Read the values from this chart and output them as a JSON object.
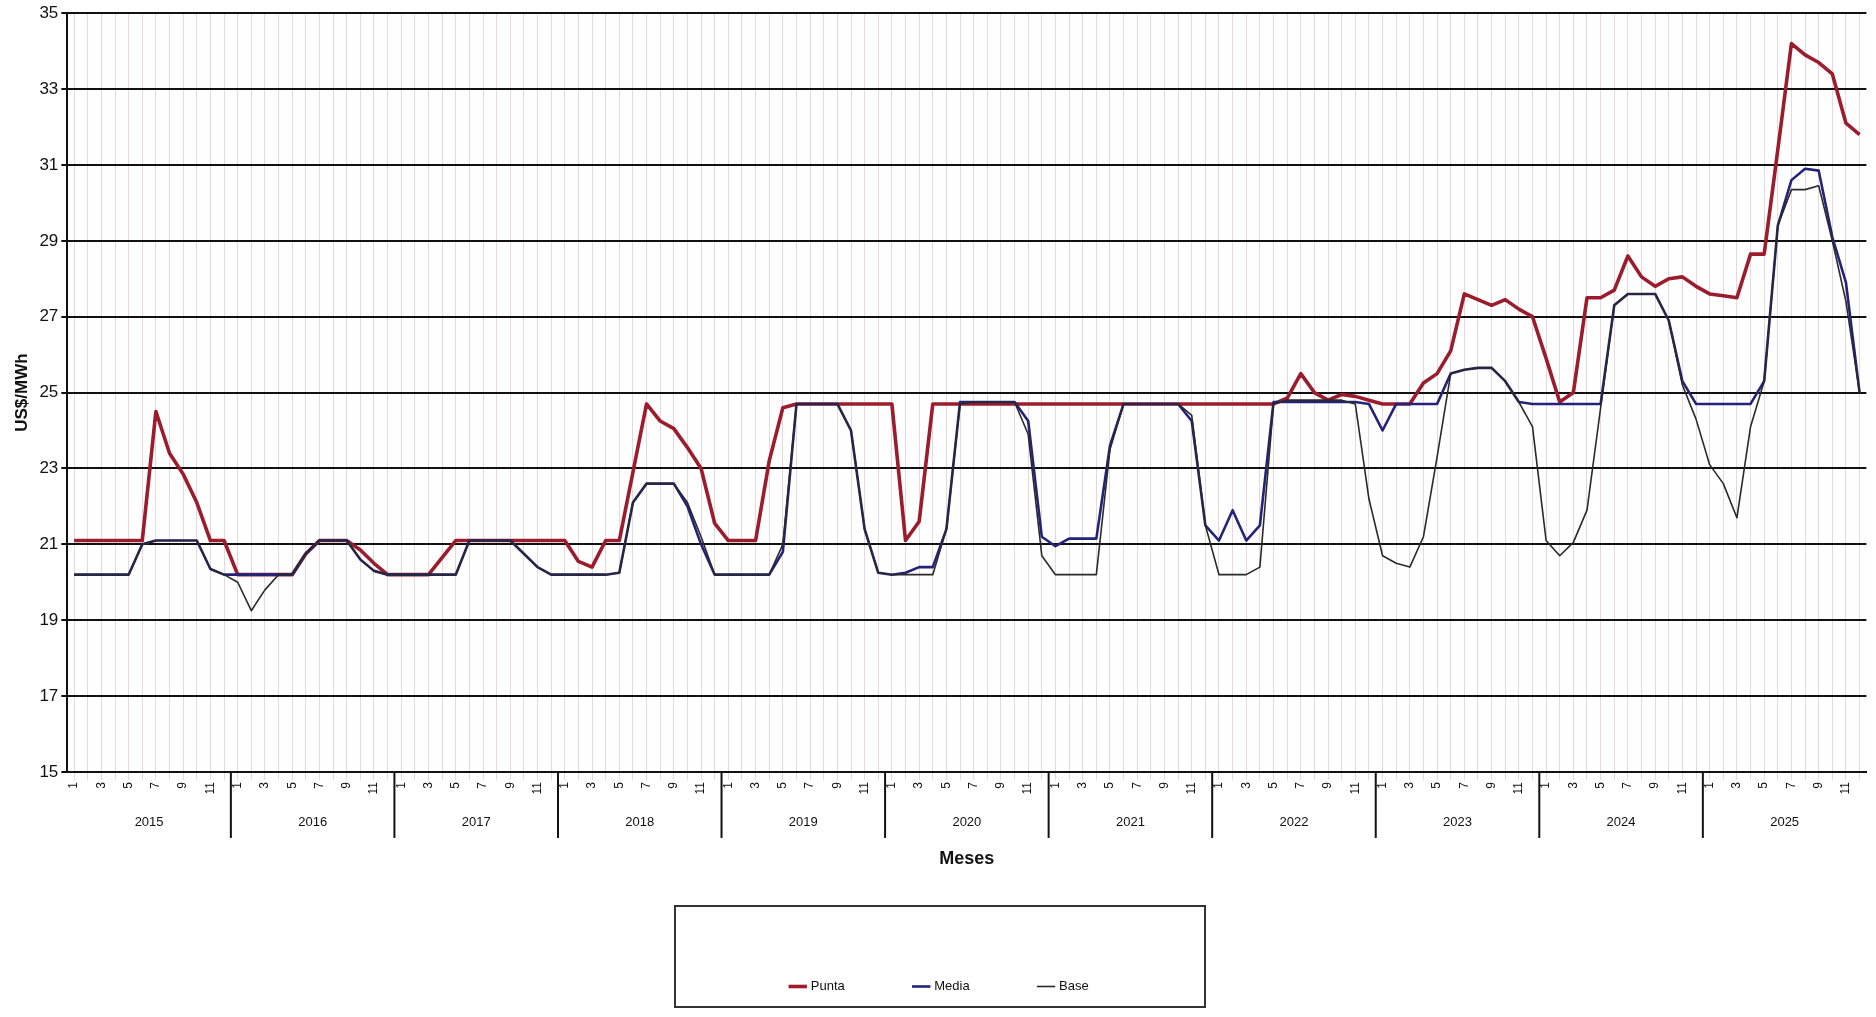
{
  "chart_data": {
    "type": "line",
    "xlabel": "Meses",
    "ylabel": "US$/MWh",
    "categories": [
      "1",
      null,
      "3",
      null,
      "5",
      null,
      "7",
      null,
      "9",
      null,
      "11",
      null,
      "1",
      null,
      "3",
      null,
      "5",
      null,
      "7",
      null,
      "9",
      null,
      "11",
      null,
      "1",
      null,
      "3",
      null,
      "5",
      null,
      "7",
      null,
      "9",
      null,
      "11",
      null,
      "1",
      null,
      "3",
      null,
      "5",
      null,
      "7",
      null,
      "9",
      null,
      "11",
      null,
      "1",
      null,
      "3",
      null,
      "5",
      null,
      "7",
      null,
      "9",
      null,
      "11",
      null,
      "1",
      null,
      "3",
      null,
      "5",
      null,
      "7",
      null,
      "9",
      null,
      "11",
      null,
      "1",
      null,
      "3",
      null,
      "5",
      null,
      "7",
      null,
      "9",
      null,
      "11",
      null,
      "1",
      null,
      "3",
      null,
      "5",
      null,
      "7",
      null,
      "9",
      null,
      "11",
      null,
      "1",
      null,
      "3",
      null,
      "5",
      null,
      "7",
      null,
      "9",
      null,
      "11",
      null,
      "1",
      null,
      "3",
      null,
      "5",
      null,
      "7",
      null,
      "9",
      null,
      "11",
      null,
      "1",
      null,
      "3",
      null,
      "5",
      null,
      "7",
      null,
      "9",
      null,
      "11",
      null
    ],
    "series": [
      {
        "name": "Punta",
        "color": "#9b1c2c",
        "values": [
          21.1,
          21.1,
          21.1,
          21.1,
          21.1,
          21.1,
          24.5,
          23.4,
          22.85,
          22.1,
          21.1,
          21.1,
          20.2,
          20.2,
          20.2,
          20.2,
          20.2,
          20.75,
          21.1,
          21.1,
          21.1,
          20.85,
          20.5,
          20.2,
          20.2,
          20.2,
          20.2,
          20.65,
          21.1,
          21.1,
          21.1,
          21.1,
          21.1,
          21.1,
          21.1,
          21.1,
          21.1,
          20.55,
          20.4,
          21.1,
          21.1,
          22.9,
          24.7,
          24.25,
          24.05,
          23.55,
          23.0,
          21.55,
          21.1,
          21.1,
          21.1,
          23.2,
          24.6,
          24.7,
          24.7,
          24.7,
          24.7,
          24.7,
          24.7,
          24.7,
          24.7,
          21.1,
          21.6,
          24.7,
          24.7,
          24.7,
          24.7,
          24.7,
          24.7,
          24.7,
          24.7,
          24.7,
          24.7,
          24.7,
          24.7,
          24.7,
          24.7,
          24.7,
          24.7,
          24.7,
          24.7,
          24.7,
          24.7,
          24.7,
          24.7,
          24.7,
          24.7,
          24.7,
          24.7,
          24.85,
          25.5,
          25.0,
          24.8,
          24.95,
          24.9,
          24.8,
          24.7,
          24.7,
          24.7,
          25.25,
          25.5,
          26.1,
          27.6,
          27.45,
          27.3,
          27.45,
          27.2,
          27.0,
          25.9,
          24.75,
          25.0,
          27.5,
          27.5,
          27.7,
          28.6,
          28.05,
          27.8,
          28.0,
          28.05,
          27.8,
          27.6,
          27.55,
          27.5,
          28.65,
          28.65,
          31.4,
          34.2,
          33.9,
          33.7,
          33.4,
          32.1,
          31.8
        ]
      },
      {
        "name": "Media",
        "color": "#23237a",
        "values": [
          20.2,
          20.2,
          20.2,
          20.2,
          20.2,
          21.0,
          21.1,
          21.1,
          21.1,
          21.1,
          20.35,
          20.2,
          20.2,
          20.2,
          20.2,
          20.2,
          20.2,
          20.75,
          21.1,
          21.1,
          21.1,
          20.6,
          20.3,
          20.2,
          20.2,
          20.2,
          20.2,
          20.2,
          20.2,
          21.1,
          21.1,
          21.1,
          21.1,
          20.75,
          20.4,
          20.2,
          20.2,
          20.2,
          20.2,
          20.2,
          20.25,
          22.1,
          22.6,
          22.6,
          22.6,
          22.0,
          21.0,
          20.2,
          20.2,
          20.2,
          20.2,
          20.2,
          20.8,
          24.7,
          24.7,
          24.7,
          24.7,
          24.0,
          21.4,
          20.25,
          20.2,
          20.25,
          20.4,
          20.4,
          21.4,
          24.75,
          24.75,
          24.75,
          24.75,
          24.75,
          24.25,
          21.2,
          20.95,
          21.15,
          21.15,
          21.15,
          23.6,
          24.7,
          24.7,
          24.7,
          24.7,
          24.7,
          24.25,
          21.5,
          21.1,
          21.9,
          21.1,
          21.5,
          24.75,
          24.75,
          24.75,
          24.75,
          24.75,
          24.75,
          24.75,
          24.7,
          24.0,
          24.7,
          24.7,
          24.7,
          24.7,
          25.5,
          25.6,
          25.65,
          25.65,
          25.3,
          24.75,
          24.7,
          24.7,
          24.7,
          24.7,
          24.7,
          24.7,
          27.3,
          27.6,
          27.6,
          27.6,
          26.9,
          25.3,
          24.7,
          24.7,
          24.7,
          24.7,
          24.7,
          25.3,
          29.4,
          30.6,
          30.9,
          30.85,
          29.1,
          27.9,
          25.0
        ]
      },
      {
        "name": "Base",
        "color": "#2a2a2a",
        "values": [
          20.2,
          20.2,
          20.2,
          20.2,
          20.2,
          21.0,
          21.1,
          21.1,
          21.1,
          21.1,
          20.35,
          20.2,
          20.0,
          19.25,
          19.8,
          20.2,
          20.2,
          20.75,
          21.1,
          21.1,
          21.1,
          20.6,
          20.3,
          20.2,
          20.2,
          20.2,
          20.2,
          20.2,
          20.2,
          21.1,
          21.1,
          21.1,
          21.1,
          20.75,
          20.4,
          20.2,
          20.2,
          20.2,
          20.2,
          20.2,
          20.25,
          22.1,
          22.6,
          22.6,
          22.6,
          22.1,
          21.2,
          20.2,
          20.2,
          20.2,
          20.2,
          20.2,
          21.0,
          24.7,
          24.7,
          24.7,
          24.7,
          24.0,
          21.4,
          20.25,
          20.2,
          20.2,
          20.2,
          20.2,
          21.4,
          24.7,
          24.75,
          24.75,
          24.75,
          24.75,
          23.9,
          20.7,
          20.2,
          20.2,
          20.2,
          20.2,
          23.5,
          24.7,
          24.7,
          24.7,
          24.7,
          24.7,
          24.4,
          21.5,
          20.2,
          20.2,
          20.2,
          20.4,
          24.7,
          24.8,
          24.8,
          24.8,
          24.8,
          24.8,
          24.7,
          22.2,
          20.7,
          20.5,
          20.4,
          21.2,
          23.3,
          25.5,
          25.6,
          25.65,
          25.65,
          25.3,
          24.75,
          24.1,
          21.1,
          20.7,
          21.05,
          21.9,
          24.6,
          27.3,
          27.6,
          27.6,
          27.6,
          26.9,
          25.2,
          24.3,
          23.1,
          22.6,
          21.7,
          24.1,
          25.3,
          29.4,
          30.35,
          30.35,
          30.45,
          29.0,
          27.4,
          25.0
        ]
      }
    ],
    "ylim": [
      15,
      35
    ],
    "yticks": [
      15,
      17,
      19,
      21,
      23,
      25,
      27,
      29,
      31,
      33,
      35
    ],
    "grid": true,
    "legend": "bottom",
    "annotations": [
      "2015",
      "2016",
      "2017",
      "2018",
      "2019",
      "2020",
      "2021",
      "2022",
      "2023",
      "2024",
      "2025"
    ]
  }
}
